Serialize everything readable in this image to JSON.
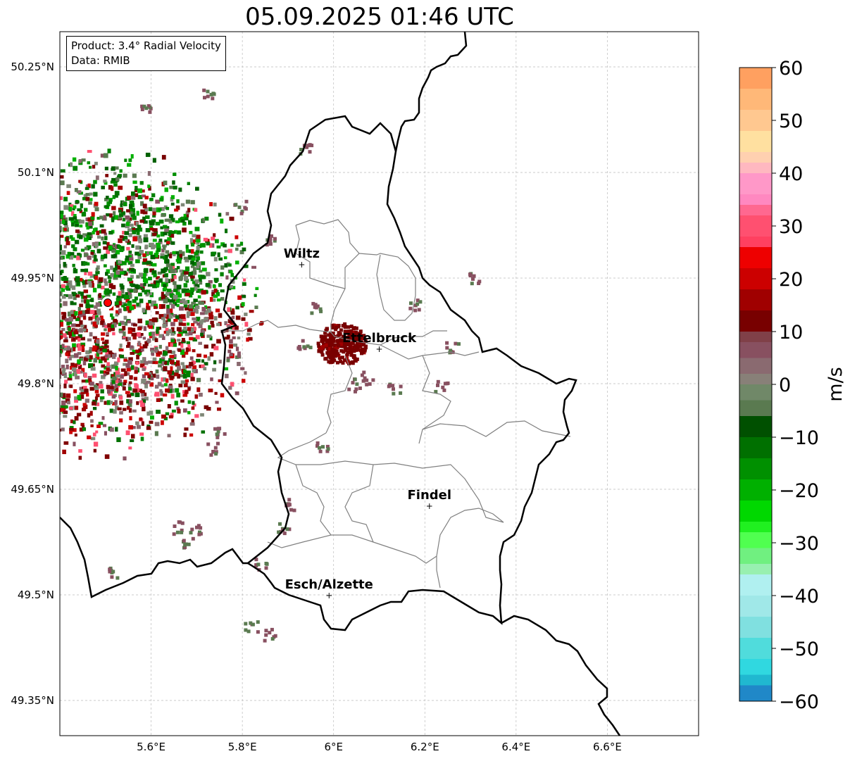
{
  "title": "05.09.2025 01:46 UTC",
  "info": {
    "product": "Product: 3.4° Radial Velocity",
    "data_source": "Data: RMIB"
  },
  "map": {
    "lon_range": [
      5.4,
      6.8
    ],
    "lat_range": [
      49.3,
      50.3
    ],
    "lon_ticks": [
      {
        "value": 5.6,
        "label": "5.6°E"
      },
      {
        "value": 5.8,
        "label": "5.8°E"
      },
      {
        "value": 6.0,
        "label": "6°E"
      },
      {
        "value": 6.2,
        "label": "6.2°E"
      },
      {
        "value": 6.4,
        "label": "6.4°E"
      },
      {
        "value": 6.6,
        "label": "6.6°E"
      }
    ],
    "lat_ticks": [
      {
        "value": 50.25,
        "label": "50.25°N"
      },
      {
        "value": 50.1,
        "label": "50.1°N"
      },
      {
        "value": 49.95,
        "label": "49.95°N"
      },
      {
        "value": 49.8,
        "label": "49.8°N"
      },
      {
        "value": 49.65,
        "label": "49.65°N"
      },
      {
        "value": 49.5,
        "label": "49.5°N"
      },
      {
        "value": 49.35,
        "label": "49.35°N"
      }
    ],
    "cities": [
      {
        "name": "Wiltz",
        "lon": 5.93,
        "lat": 49.97
      },
      {
        "name": "Ettelbruck",
        "lon": 6.1,
        "lat": 49.85
      },
      {
        "name": "Findel",
        "lon": 6.21,
        "lat": 49.627
      },
      {
        "name": "Esch/Alzette",
        "lon": 5.99,
        "lat": 49.5
      }
    ],
    "radar_site": {
      "lon": 5.505,
      "lat": 49.915
    },
    "colors": {
      "border": "#000000",
      "cantons": "#808080",
      "grid": "#bbbbbb",
      "radar_marker": "#ff0000"
    }
  },
  "colorbar": {
    "unit": "m/s",
    "vmin": -60,
    "vmax": 60,
    "tick_labels": [
      {
        "value": 60,
        "label": "60"
      },
      {
        "value": 50,
        "label": "50"
      },
      {
        "value": 40,
        "label": "40"
      },
      {
        "value": 30,
        "label": "30"
      },
      {
        "value": 20,
        "label": "20"
      },
      {
        "value": 10,
        "label": "10"
      },
      {
        "value": 0,
        "label": "0"
      },
      {
        "value": -10,
        "label": "−10"
      },
      {
        "value": -20,
        "label": "−20"
      },
      {
        "value": -30,
        "label": "−30"
      },
      {
        "value": -40,
        "label": "−40"
      },
      {
        "value": -50,
        "label": "−50"
      },
      {
        "value": -60,
        "label": "−60"
      }
    ],
    "bands": [
      {
        "from": 56,
        "to": 60,
        "color": "#ffa060"
      },
      {
        "from": 52,
        "to": 56,
        "color": "#ffb878"
      },
      {
        "from": 48,
        "to": 52,
        "color": "#ffc890"
      },
      {
        "from": 44,
        "to": 48,
        "color": "#ffe0a0"
      },
      {
        "from": 42,
        "to": 44,
        "color": "#ffd0b0"
      },
      {
        "from": 40,
        "to": 42,
        "color": "#ffb8c0"
      },
      {
        "from": 36,
        "to": 40,
        "color": "#ff98c8"
      },
      {
        "from": 34,
        "to": 36,
        "color": "#ff88c0"
      },
      {
        "from": 32,
        "to": 34,
        "color": "#ff6890"
      },
      {
        "from": 28,
        "to": 32,
        "color": "#ff5070"
      },
      {
        "from": 26,
        "to": 28,
        "color": "#ff4060"
      },
      {
        "from": 22,
        "to": 26,
        "color": "#ee0000"
      },
      {
        "from": 18,
        "to": 22,
        "color": "#cc0000"
      },
      {
        "from": 14,
        "to": 18,
        "color": "#a00000"
      },
      {
        "from": 10,
        "to": 14,
        "color": "#780000"
      },
      {
        "from": 8,
        "to": 10,
        "color": "#804048"
      },
      {
        "from": 5,
        "to": 8,
        "color": "#885060"
      },
      {
        "from": 2,
        "to": 5,
        "color": "#8a6a70"
      },
      {
        "from": 0,
        "to": 2,
        "color": "#888078"
      },
      {
        "from": -3,
        "to": 0,
        "color": "#708868"
      },
      {
        "from": -6,
        "to": -3,
        "color": "#5a7a50"
      },
      {
        "from": -10,
        "to": -6,
        "color": "#005000"
      },
      {
        "from": -14,
        "to": -10,
        "color": "#007000"
      },
      {
        "from": -18,
        "to": -14,
        "color": "#009000"
      },
      {
        "from": -22,
        "to": -18,
        "color": "#00b000"
      },
      {
        "from": -26,
        "to": -22,
        "color": "#00d800"
      },
      {
        "from": -28,
        "to": -26,
        "color": "#20f020"
      },
      {
        "from": -31,
        "to": -28,
        "color": "#50ff50"
      },
      {
        "from": -34,
        "to": -31,
        "color": "#70f080"
      },
      {
        "from": -36,
        "to": -34,
        "color": "#98f0b0"
      },
      {
        "from": -40,
        "to": -36,
        "color": "#b0f0f0"
      },
      {
        "from": -44,
        "to": -40,
        "color": "#a0e8e8"
      },
      {
        "from": -48,
        "to": -44,
        "color": "#80e0e0"
      },
      {
        "from": -52,
        "to": -48,
        "color": "#50dcdc"
      },
      {
        "from": -55,
        "to": -52,
        "color": "#30d8e0"
      },
      {
        "from": -57,
        "to": -55,
        "color": "#20b8d0"
      },
      {
        "from": -60,
        "to": -57,
        "color": "#2088c8"
      }
    ]
  }
}
